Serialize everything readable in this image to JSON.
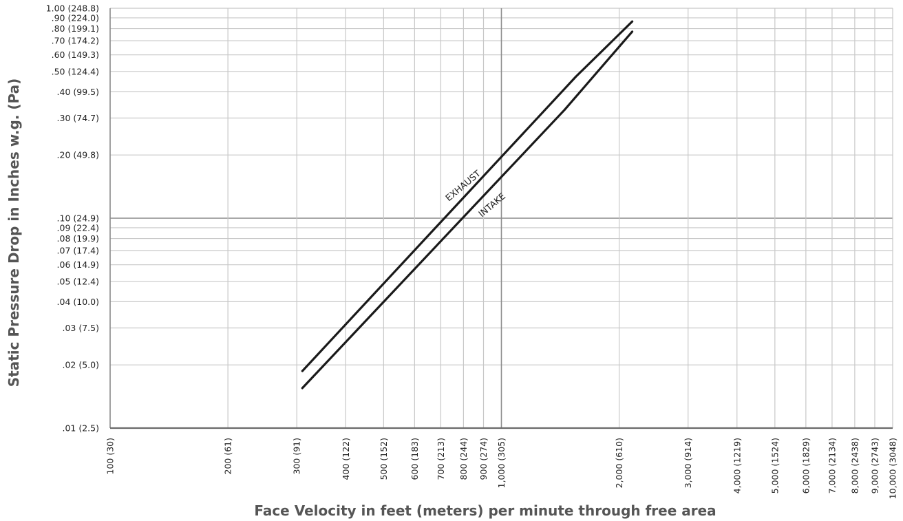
{
  "chart_data": {
    "type": "line",
    "xlabel": "Face Velocity in feet (meters) per minute through free area",
    "ylabel": "Static Pressure Drop in Inches w.g. (Pa)",
    "x_scale": "log",
    "y_scale": "log",
    "xlim": [
      100,
      10000
    ],
    "ylim": [
      0.01,
      1.0
    ],
    "grid": true,
    "x_ticks": [
      {
        "value": 100,
        "label": "100 (30)"
      },
      {
        "value": 200,
        "label": "200 (61)"
      },
      {
        "value": 300,
        "label": "300 (91)"
      },
      {
        "value": 400,
        "label": "400 (122)"
      },
      {
        "value": 500,
        "label": "500 (152)"
      },
      {
        "value": 600,
        "label": "600 (183)"
      },
      {
        "value": 700,
        "label": "700 (213)"
      },
      {
        "value": 800,
        "label": "800 (244)"
      },
      {
        "value": 900,
        "label": "900 (274)"
      },
      {
        "value": 1000,
        "label": "1,000 (305)"
      },
      {
        "value": 2000,
        "label": "2,000 (610)"
      },
      {
        "value": 3000,
        "label": "3,000 (914)"
      },
      {
        "value": 4000,
        "label": "4,000 (1219)"
      },
      {
        "value": 5000,
        "label": "5,000 (1524)"
      },
      {
        "value": 6000,
        "label": "6,000 (1829)"
      },
      {
        "value": 7000,
        "label": "7,000 (2134)"
      },
      {
        "value": 8000,
        "label": "8,000 (2438)"
      },
      {
        "value": 9000,
        "label": "9,000 (2743)"
      },
      {
        "value": 10000,
        "label": "10,000 (3048)"
      }
    ],
    "y_ticks": [
      {
        "value": 1.0,
        "label": "1.00 (248.8)"
      },
      {
        "value": 0.9,
        "label": ".90 (224.0)"
      },
      {
        "value": 0.8,
        "label": ".80 (199.1)"
      },
      {
        "value": 0.7,
        "label": ".70 (174.2)"
      },
      {
        "value": 0.6,
        "label": ".60 (149.3)"
      },
      {
        "value": 0.5,
        "label": ".50 (124.4)"
      },
      {
        "value": 0.4,
        "label": ".40 (99.5)"
      },
      {
        "value": 0.3,
        "label": ".30 (74.7)"
      },
      {
        "value": 0.2,
        "label": ".20 (49.8)"
      },
      {
        "value": 0.1,
        "label": ".10 (24.9)"
      },
      {
        "value": 0.09,
        "label": ".09 (22.4)"
      },
      {
        "value": 0.08,
        "label": ".08 (19.9)"
      },
      {
        "value": 0.07,
        "label": ".07 (17.4)"
      },
      {
        "value": 0.06,
        "label": ".06 (14.9)"
      },
      {
        "value": 0.05,
        "label": ".05 (12.4)"
      },
      {
        "value": 0.04,
        "label": ".04 (10.0)"
      },
      {
        "value": 0.03,
        "label": ".03 (7.5)"
      },
      {
        "value": 0.02,
        "label": ".02 (5.0)"
      },
      {
        "value": 0.01,
        "label": ".01 (2.5)"
      }
    ],
    "series": [
      {
        "name": "EXHAUST",
        "color": "#1a1a1a",
        "points": [
          [
            310,
            0.0187
          ],
          [
            1550,
            0.472
          ],
          [
            2160,
            0.865
          ]
        ]
      },
      {
        "name": "INTAKE",
        "color": "#1a1a1a",
        "points": [
          [
            310,
            0.0155
          ],
          [
            1450,
            0.328
          ],
          [
            2160,
            0.774
          ]
        ]
      }
    ]
  }
}
